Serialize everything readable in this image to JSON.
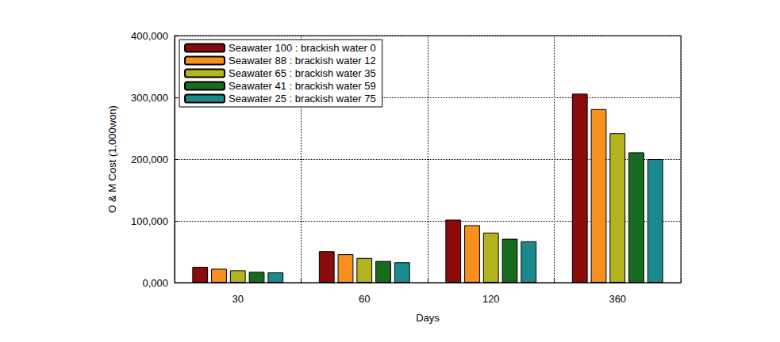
{
  "chart_data": {
    "type": "bar",
    "x_label": "Days",
    "y_label": "O & M Cost (1,000won)",
    "categories": [
      "30",
      "60",
      "120",
      "360"
    ],
    "series": [
      {
        "name": "Seawater 100 : brackish water 0",
        "color": "#8b0a0a",
        "values": [
          25500,
          51000,
          102000,
          306000
        ]
      },
      {
        "name": "Seawater 88 : brackish water 12",
        "color": "#f7901e",
        "values": [
          22500,
          46000,
          93000,
          281000
        ]
      },
      {
        "name": "Seawater 65 : brackish water 35",
        "color": "#b3b51e",
        "values": [
          20000,
          40000,
          81000,
          242000
        ]
      },
      {
        "name": "Seawater 41 : brackish water 59",
        "color": "#176b1f",
        "values": [
          17500,
          35000,
          71000,
          211000
        ]
      },
      {
        "name": "Seawater 25 : brackish water 75",
        "color": "#1b8a8c",
        "values": [
          16500,
          33000,
          67000,
          200000
        ]
      }
    ],
    "ylim": [
      0,
      400000
    ],
    "yticks": [
      {
        "value": 0,
        "label": "0,000"
      },
      {
        "value": 100000,
        "label": "100,000"
      },
      {
        "value": 200000,
        "label": "200,000"
      },
      {
        "value": 300000,
        "label": "300,000"
      },
      {
        "value": 400000,
        "label": "400,000"
      }
    ],
    "grid": true,
    "legend": "upper left"
  }
}
